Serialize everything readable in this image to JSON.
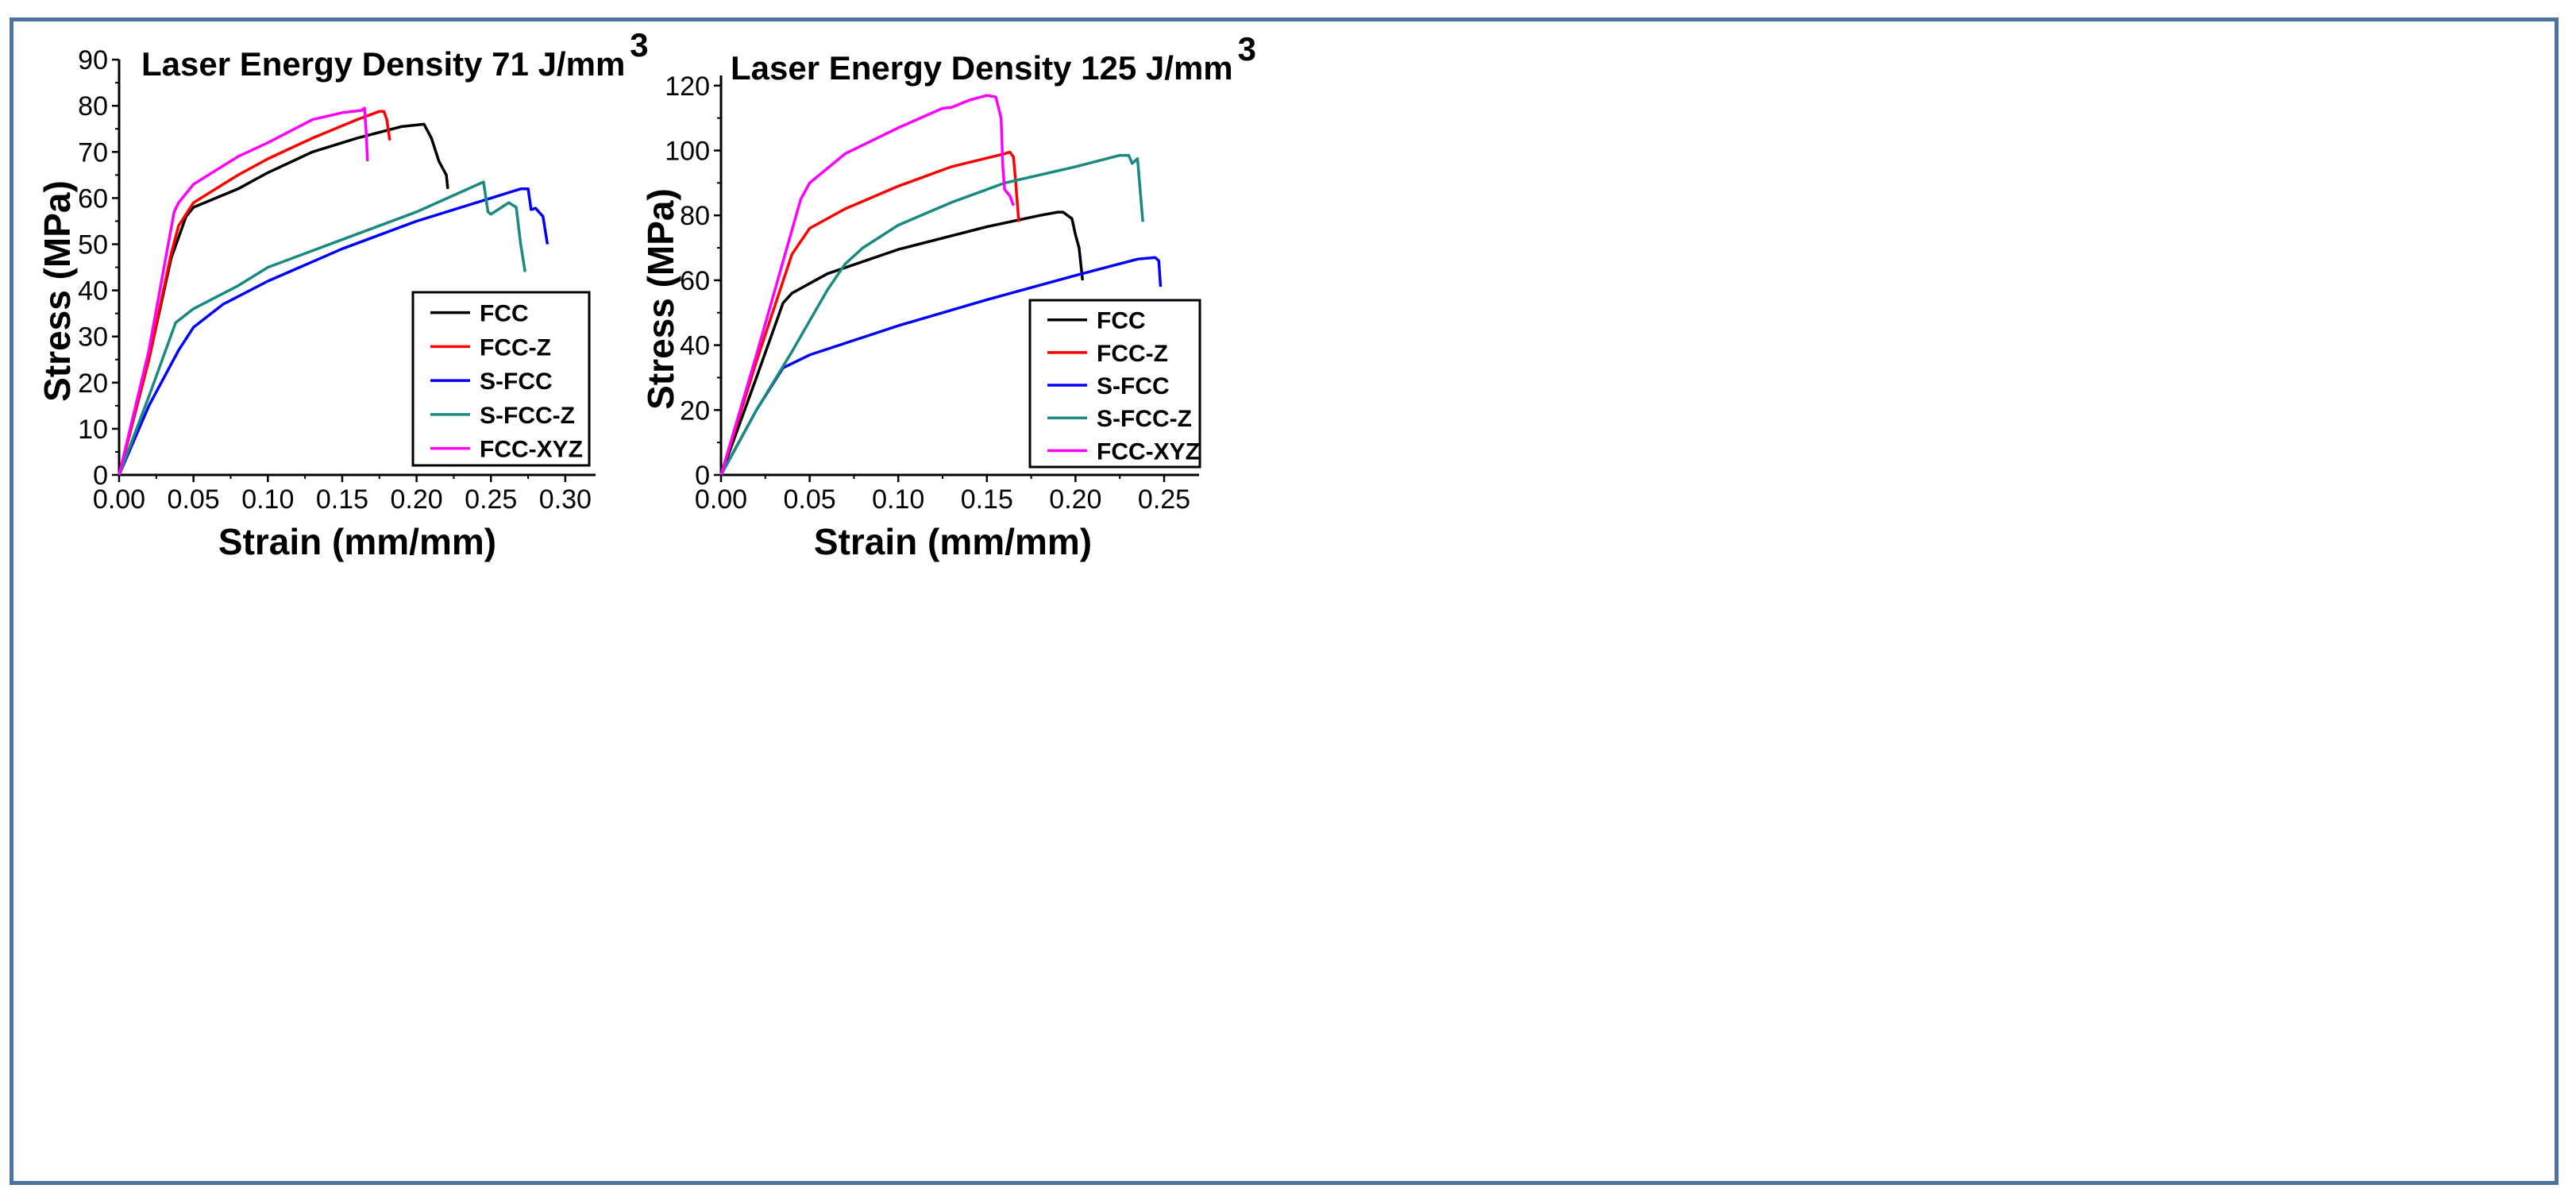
{
  "chart_data": [
    {
      "type": "line",
      "title": "Laser Energy Density 71 J/mm",
      "title_superscript": "3",
      "xlabel": "Strain (mm/mm)",
      "ylabel": "Stress (MPa)",
      "xlim": [
        0,
        0.33
      ],
      "ylim": [
        0,
        90
      ],
      "xticks": [
        "0.00",
        "0.05",
        "0.10",
        "0.15",
        "0.20",
        "0.25",
        "0.30"
      ],
      "yticks": [
        "0",
        "10",
        "20",
        "30",
        "40",
        "50",
        "60",
        "70",
        "80",
        "90"
      ],
      "legend_position": "bottom-right",
      "series": [
        {
          "name": "FCC",
          "color": "#000000",
          "points": [
            [
              0,
              0
            ],
            [
              0.02,
              25
            ],
            [
              0.035,
              47
            ],
            [
              0.045,
              56
            ],
            [
              0.05,
              58
            ],
            [
              0.08,
              62
            ],
            [
              0.1,
              65.5
            ],
            [
              0.13,
              70
            ],
            [
              0.16,
              73
            ],
            [
              0.19,
              75.5
            ],
            [
              0.205,
              76
            ],
            [
              0.21,
              73
            ],
            [
              0.215,
              68
            ],
            [
              0.22,
              65
            ],
            [
              0.221,
              62
            ]
          ]
        },
        {
          "name": "FCC-Z",
          "color": "#ff0000",
          "points": [
            [
              0,
              0
            ],
            [
              0.02,
              25
            ],
            [
              0.035,
              48
            ],
            [
              0.04,
              54
            ],
            [
              0.05,
              59
            ],
            [
              0.08,
              65
            ],
            [
              0.1,
              68.5
            ],
            [
              0.13,
              73
            ],
            [
              0.16,
              77
            ],
            [
              0.175,
              78.8
            ],
            [
              0.178,
              78.8
            ],
            [
              0.18,
              77
            ],
            [
              0.182,
              72.5
            ]
          ]
        },
        {
          "name": "S-FCC",
          "color": "#0000ff",
          "points": [
            [
              0,
              0
            ],
            [
              0.02,
              15
            ],
            [
              0.04,
              27
            ],
            [
              0.05,
              32
            ],
            [
              0.07,
              37
            ],
            [
              0.1,
              42
            ],
            [
              0.15,
              49
            ],
            [
              0.2,
              55
            ],
            [
              0.25,
              60
            ],
            [
              0.27,
              62
            ],
            [
              0.275,
              62
            ],
            [
              0.277,
              57.5
            ],
            [
              0.28,
              57.8
            ],
            [
              0.285,
              56
            ],
            [
              0.288,
              50
            ]
          ]
        },
        {
          "name": "S-FCC-Z",
          "color": "#1a8a80",
          "points": [
            [
              0,
              0
            ],
            [
              0.02,
              17
            ],
            [
              0.038,
              33
            ],
            [
              0.05,
              36
            ],
            [
              0.08,
              41
            ],
            [
              0.1,
              45
            ],
            [
              0.15,
              51
            ],
            [
              0.2,
              57
            ],
            [
              0.245,
              63.5
            ],
            [
              0.248,
              57
            ],
            [
              0.25,
              56.5
            ],
            [
              0.262,
              59
            ],
            [
              0.267,
              58
            ],
            [
              0.27,
              50
            ],
            [
              0.273,
              44
            ]
          ]
        },
        {
          "name": "FCC-XYZ",
          "color": "#ff00ff",
          "points": [
            [
              0,
              0
            ],
            [
              0.02,
              27
            ],
            [
              0.037,
              57
            ],
            [
              0.04,
              59
            ],
            [
              0.05,
              63
            ],
            [
              0.08,
              69
            ],
            [
              0.1,
              72
            ],
            [
              0.13,
              77
            ],
            [
              0.15,
              78.5
            ],
            [
              0.163,
              79
            ],
            [
              0.165,
              79.5
            ],
            [
              0.166,
              75
            ],
            [
              0.167,
              68
            ]
          ]
        }
      ]
    },
    {
      "type": "line",
      "title": "Laser Energy Density 125 J/mm",
      "title_superscript": "3",
      "xlabel": "Strain (mm/mm)",
      "ylabel": "Stress (MPa)",
      "xlim": [
        0,
        0.27
      ],
      "ylim": [
        0,
        125
      ],
      "xticks": [
        "0.00",
        "0.05",
        "0.10",
        "0.15",
        "0.20",
        "0.25"
      ],
      "yticks": [
        "0",
        "20",
        "40",
        "60",
        "80",
        "100",
        "120"
      ],
      "legend_position": "bottom-right",
      "series": [
        {
          "name": "FCC",
          "color": "#000000",
          "points": [
            [
              0,
              0
            ],
            [
              0.02,
              30
            ],
            [
              0.035,
              53
            ],
            [
              0.04,
              56
            ],
            [
              0.06,
              62
            ],
            [
              0.1,
              69.5
            ],
            [
              0.15,
              76.5
            ],
            [
              0.18,
              80
            ],
            [
              0.19,
              81
            ],
            [
              0.193,
              81
            ],
            [
              0.198,
              79
            ],
            [
              0.2,
              74
            ],
            [
              0.202,
              70
            ],
            [
              0.204,
              60
            ]
          ]
        },
        {
          "name": "FCC-Z",
          "color": "#ff0000",
          "points": [
            [
              0,
              0
            ],
            [
              0.02,
              35
            ],
            [
              0.04,
              68
            ],
            [
              0.05,
              76
            ],
            [
              0.07,
              82
            ],
            [
              0.1,
              89
            ],
            [
              0.13,
              95
            ],
            [
              0.16,
              99
            ],
            [
              0.163,
              99.5
            ],
            [
              0.165,
              98
            ],
            [
              0.166,
              92
            ],
            [
              0.168,
              78
            ]
          ]
        },
        {
          "name": "S-FCC",
          "color": "#0000ff",
          "points": [
            [
              0,
              0
            ],
            [
              0.02,
              20
            ],
            [
              0.035,
              33
            ],
            [
              0.05,
              37
            ],
            [
              0.1,
              46
            ],
            [
              0.15,
              54
            ],
            [
              0.2,
              61.5
            ],
            [
              0.235,
              66.5
            ],
            [
              0.245,
              67
            ],
            [
              0.247,
              66
            ],
            [
              0.248,
              58
            ]
          ]
        },
        {
          "name": "S-FCC-Z",
          "color": "#1a8a80",
          "points": [
            [
              0,
              0
            ],
            [
              0.02,
              20
            ],
            [
              0.04,
              38
            ],
            [
              0.06,
              57
            ],
            [
              0.07,
              65
            ],
            [
              0.08,
              70
            ],
            [
              0.1,
              77
            ],
            [
              0.13,
              84
            ],
            [
              0.16,
              90
            ],
            [
              0.2,
              95
            ],
            [
              0.225,
              98.5
            ],
            [
              0.23,
              98.5
            ],
            [
              0.232,
              96
            ],
            [
              0.235,
              97.5
            ],
            [
              0.238,
              78
            ]
          ]
        },
        {
          "name": "FCC-XYZ",
          "color": "#ff00ff",
          "points": [
            [
              0,
              0
            ],
            [
              0.02,
              37
            ],
            [
              0.045,
              85
            ],
            [
              0.05,
              90
            ],
            [
              0.07,
              99
            ],
            [
              0.1,
              107
            ],
            [
              0.125,
              113
            ],
            [
              0.13,
              113.3
            ],
            [
              0.14,
              115.5
            ],
            [
              0.15,
              117
            ],
            [
              0.155,
              116.5
            ],
            [
              0.158,
              110
            ],
            [
              0.159,
              95
            ],
            [
              0.16,
              88
            ],
            [
              0.163,
              86
            ],
            [
              0.165,
              83
            ]
          ]
        }
      ]
    }
  ]
}
